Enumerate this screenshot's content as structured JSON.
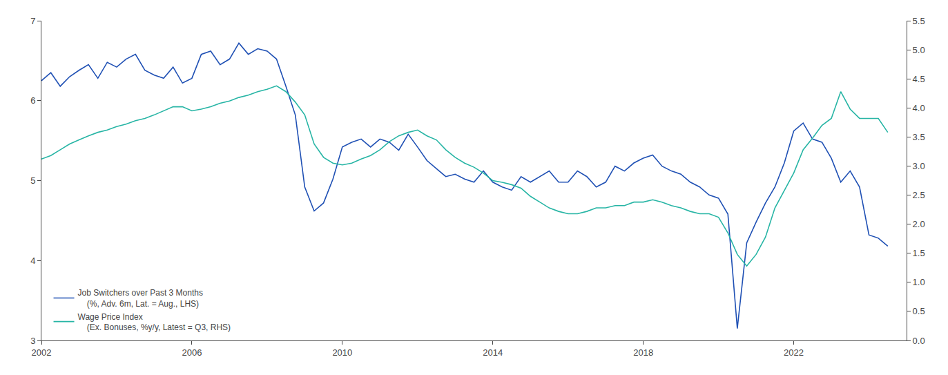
{
  "chart_data": {
    "type": "line",
    "x": [
      2002.0,
      2002.25,
      2002.5,
      2002.75,
      2003.0,
      2003.25,
      2003.5,
      2003.75,
      2004.0,
      2004.25,
      2004.5,
      2004.75,
      2005.0,
      2005.25,
      2005.5,
      2005.75,
      2006.0,
      2006.25,
      2006.5,
      2006.75,
      2007.0,
      2007.25,
      2007.5,
      2007.75,
      2008.0,
      2008.25,
      2008.5,
      2008.75,
      2009.0,
      2009.25,
      2009.5,
      2009.75,
      2010.0,
      2010.25,
      2010.5,
      2010.75,
      2011.0,
      2011.25,
      2011.5,
      2011.75,
      2012.0,
      2012.25,
      2012.5,
      2012.75,
      2013.0,
      2013.25,
      2013.5,
      2013.75,
      2014.0,
      2014.25,
      2014.5,
      2014.75,
      2015.0,
      2015.25,
      2015.5,
      2015.75,
      2016.0,
      2016.25,
      2016.5,
      2016.75,
      2017.0,
      2017.25,
      2017.5,
      2017.75,
      2018.0,
      2018.25,
      2018.5,
      2018.75,
      2019.0,
      2019.25,
      2019.5,
      2019.75,
      2020.0,
      2020.25,
      2020.5,
      2020.75,
      2021.0,
      2021.25,
      2021.5,
      2021.75,
      2022.0,
      2022.25,
      2022.5,
      2022.75,
      2023.0,
      2023.25,
      2023.5,
      2023.75,
      2024.0,
      2024.25,
      2024.5
    ],
    "series": [
      {
        "name": "Job Switchers over Past 3 Months\n    (%, Adv. 6m, Lat. = Aug., LHS)",
        "color": "#1f50b4",
        "values": [
          6.25,
          6.35,
          6.18,
          6.3,
          6.38,
          6.45,
          6.28,
          6.48,
          6.42,
          6.52,
          6.58,
          6.38,
          6.32,
          6.28,
          6.42,
          6.22,
          6.28,
          6.58,
          6.62,
          6.45,
          6.52,
          6.72,
          6.58,
          6.65,
          6.62,
          6.52,
          6.18,
          5.82,
          4.92,
          4.62,
          4.72,
          5.02,
          5.42,
          5.48,
          5.52,
          5.42,
          5.52,
          5.48,
          5.38,
          5.58,
          5.42,
          5.25,
          5.15,
          5.05,
          5.08,
          5.02,
          4.98,
          5.12,
          4.98,
          4.92,
          4.88,
          5.05,
          4.98,
          5.05,
          5.12,
          4.98,
          4.98,
          5.12,
          5.05,
          4.92,
          4.98,
          5.18,
          5.12,
          5.22,
          5.28,
          5.32,
          5.18,
          5.12,
          5.08,
          4.98,
          4.92,
          4.82,
          4.78,
          4.58,
          3.15,
          4.22,
          4.48,
          4.72,
          4.92,
          5.22,
          5.62,
          5.72,
          5.52,
          5.48,
          5.28,
          4.98,
          5.12,
          4.92,
          4.32,
          4.28,
          4.18
        ]
      },
      {
        "name": "Wage Price Index\n    (Ex. Bonuses, %y/y, Latest = Q3, RHS)",
        "color": "#27b5a5",
        "axis": "y2",
        "values": [
          3.12,
          3.18,
          3.28,
          3.38,
          3.45,
          3.52,
          3.58,
          3.62,
          3.68,
          3.72,
          3.78,
          3.82,
          3.88,
          3.95,
          4.02,
          4.02,
          3.95,
          3.98,
          4.02,
          4.08,
          4.12,
          4.18,
          4.22,
          4.28,
          4.32,
          4.38,
          4.28,
          4.1,
          3.88,
          3.38,
          3.15,
          3.05,
          3.02,
          3.05,
          3.12,
          3.18,
          3.28,
          3.42,
          3.52,
          3.58,
          3.62,
          3.52,
          3.45,
          3.28,
          3.15,
          3.05,
          2.98,
          2.88,
          2.75,
          2.72,
          2.68,
          2.62,
          2.48,
          2.38,
          2.28,
          2.22,
          2.18,
          2.18,
          2.22,
          2.28,
          2.28,
          2.32,
          2.32,
          2.38,
          2.38,
          2.42,
          2.38,
          2.32,
          2.28,
          2.22,
          2.18,
          2.18,
          2.12,
          1.85,
          1.48,
          1.28,
          1.48,
          1.78,
          2.28,
          2.58,
          2.88,
          3.28,
          3.48,
          3.7,
          3.82,
          4.28,
          3.98,
          3.82,
          3.82,
          3.82,
          3.58
        ]
      }
    ],
    "xlim": [
      2002.0,
      2025.0
    ],
    "xticks": [
      2002,
      2006,
      2010,
      2014,
      2018,
      2022
    ],
    "ylim": [
      3,
      7
    ],
    "yticks": [
      3,
      4,
      5,
      6,
      7
    ],
    "y2lim": [
      0.0,
      5.5
    ],
    "y2ticks": [
      {
        "value": 0.0,
        "label": "0.0"
      },
      0.5,
      {
        "value": 1.0,
        "label": "1.0"
      },
      1.5,
      {
        "value": 2.0,
        "label": "2.0"
      },
      2.5,
      {
        "value": 3.0,
        "label": "3.0"
      },
      3.5,
      {
        "value": 4.0,
        "label": "4.0"
      },
      4.5,
      {
        "value": 5.0,
        "label": "5.0"
      },
      5.5
    ],
    "grid": false,
    "legend": "lower left"
  }
}
